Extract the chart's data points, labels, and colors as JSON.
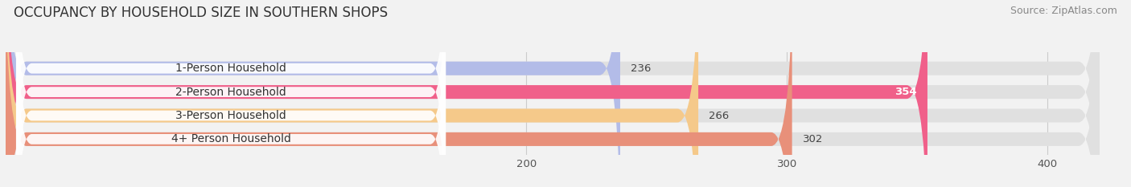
{
  "title": "OCCUPANCY BY HOUSEHOLD SIZE IN SOUTHERN SHOPS",
  "source": "Source: ZipAtlas.com",
  "categories": [
    "1-Person Household",
    "2-Person Household",
    "3-Person Household",
    "4+ Person Household"
  ],
  "values": [
    236,
    354,
    266,
    302
  ],
  "bar_colors": [
    "#b3bce8",
    "#f0608a",
    "#f5c98a",
    "#e8907a"
  ],
  "label_colors": [
    "#444444",
    "#444444",
    "#444444",
    "#444444"
  ],
  "value_colors": [
    "#444444",
    "#ffffff",
    "#444444",
    "#444444"
  ],
  "xlim": [
    0,
    430
  ],
  "data_xlim": [
    0,
    420
  ],
  "xticks": [
    200,
    300,
    400
  ],
  "background_color": "#f2f2f2",
  "bar_background_color": "#e0e0e0",
  "title_fontsize": 12,
  "source_fontsize": 9,
  "label_fontsize": 10,
  "value_fontsize": 9.5
}
